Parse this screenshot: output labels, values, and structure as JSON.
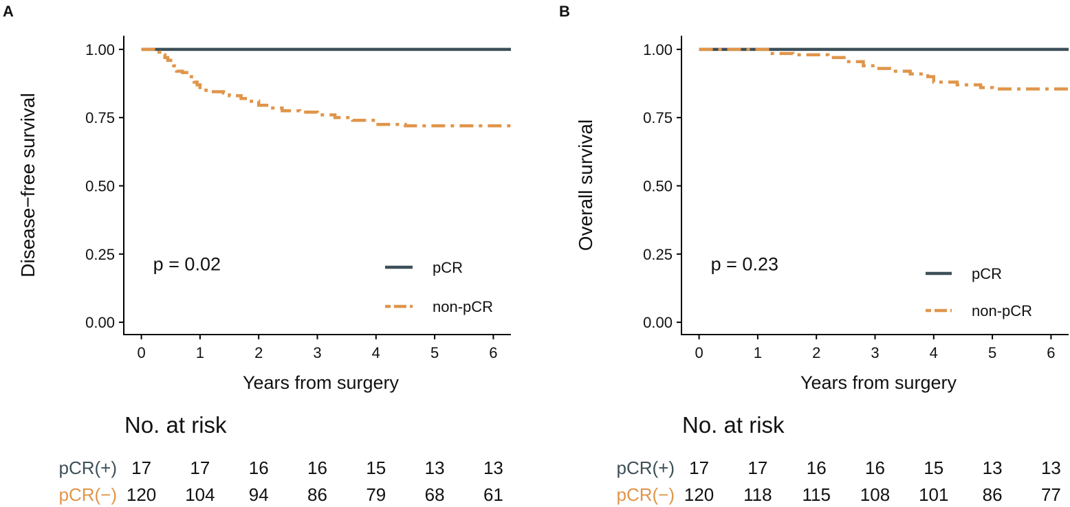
{
  "colors": {
    "pcr": "#3d4f58",
    "nonpcr": "#e0954a",
    "axis": "#000000",
    "text": "#111111"
  },
  "chart_data": [
    {
      "type": "line",
      "panel_label": "A",
      "xlabel": "Years from surgery",
      "ylabel": "Disease−free survival",
      "xlim": [
        -0.3,
        6.3
      ],
      "ylim": [
        -0.045,
        1.05
      ],
      "xticks": [
        0,
        1,
        2,
        3,
        4,
        5,
        6
      ],
      "yticks": [
        0.0,
        0.25,
        0.5,
        0.75,
        1.0
      ],
      "ytick_labels": [
        "0.00",
        "0.25",
        "0.50",
        "0.75",
        "1.00"
      ],
      "xtick_labels": [
        "0",
        "1",
        "2",
        "3",
        "4",
        "5",
        "6"
      ],
      "pvalue": "p = 0.02",
      "legend": [
        {
          "name": "pCR",
          "style": "solid"
        },
        {
          "name": "non-pCR",
          "style": "dashdot"
        }
      ],
      "series": [
        {
          "name": "pCR",
          "style": "solid",
          "x": [
            0,
            6.3
          ],
          "y": [
            1.0,
            1.0
          ]
        },
        {
          "name": "non-pCR",
          "style": "dashdot",
          "x": [
            0,
            0.2,
            0.3,
            0.35,
            0.4,
            0.45,
            0.5,
            0.55,
            0.6,
            0.65,
            0.7,
            0.85,
            0.9,
            0.95,
            1.0,
            1.1,
            1.2,
            1.4,
            1.5,
            1.7,
            1.8,
            2.0,
            2.2,
            2.4,
            2.7,
            3.0,
            3.3,
            3.6,
            4.0,
            4.5,
            5.0,
            6.3
          ],
          "y": [
            1.0,
            1.0,
            0.99,
            0.98,
            0.97,
            0.96,
            0.95,
            0.94,
            0.92,
            0.92,
            0.915,
            0.9,
            0.88,
            0.87,
            0.86,
            0.85,
            0.845,
            0.84,
            0.83,
            0.82,
            0.81,
            0.795,
            0.785,
            0.775,
            0.77,
            0.76,
            0.75,
            0.74,
            0.725,
            0.72,
            0.72,
            0.72
          ]
        }
      ],
      "risk_table": {
        "title": "No. at risk",
        "rows": [
          {
            "label": "pCR(+)",
            "values": [
              "17",
              "17",
              "16",
              "16",
              "15",
              "13",
              "13"
            ]
          },
          {
            "label": "pCR(−)",
            "values": [
              "120",
              "104",
              "94",
              "86",
              "79",
              "68",
              "61"
            ]
          }
        ]
      }
    },
    {
      "type": "line",
      "panel_label": "B",
      "xlabel": "Years from surgery",
      "ylabel": "Overall survival",
      "xlim": [
        -0.3,
        6.3
      ],
      "ylim": [
        -0.045,
        1.05
      ],
      "xticks": [
        0,
        1,
        2,
        3,
        4,
        5,
        6
      ],
      "yticks": [
        0.0,
        0.25,
        0.5,
        0.75,
        1.0
      ],
      "ytick_labels": [
        "0.00",
        "0.25",
        "0.50",
        "0.75",
        "1.00"
      ],
      "xtick_labels": [
        "0",
        "1",
        "2",
        "3",
        "4",
        "5",
        "6"
      ],
      "pvalue": "p = 0.23",
      "legend": [
        {
          "name": "pCR",
          "style": "solid"
        },
        {
          "name": "non-pCR",
          "style": "dashdot"
        }
      ],
      "series": [
        {
          "name": "pCR",
          "style": "solid",
          "x": [
            0,
            6.3
          ],
          "y": [
            1.0,
            1.0
          ]
        },
        {
          "name": "non-pCR",
          "style": "dashdot",
          "x": [
            0,
            0.9,
            1.2,
            1.6,
            2.2,
            2.5,
            2.8,
            3.0,
            3.3,
            3.6,
            3.9,
            4.0,
            4.4,
            4.8,
            5.0,
            6.3
          ],
          "y": [
            1.0,
            1.0,
            0.985,
            0.98,
            0.97,
            0.955,
            0.94,
            0.93,
            0.92,
            0.91,
            0.9,
            0.88,
            0.87,
            0.86,
            0.855,
            0.855
          ]
        }
      ],
      "risk_table": {
        "title": "No. at risk",
        "rows": [
          {
            "label": "pCR(+)",
            "values": [
              "17",
              "17",
              "16",
              "16",
              "15",
              "13",
              "13"
            ]
          },
          {
            "label": "pCR(−)",
            "values": [
              "120",
              "118",
              "115",
              "108",
              "101",
              "86",
              "77"
            ]
          }
        ]
      }
    }
  ]
}
